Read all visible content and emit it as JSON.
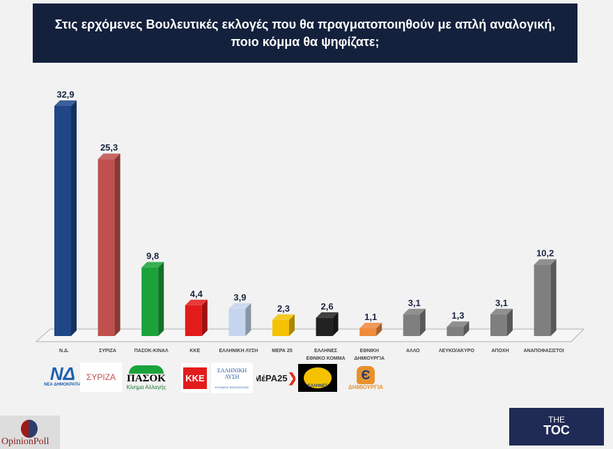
{
  "chart_data": {
    "type": "bar",
    "title": "Στις ερχόμενες Βουλευτικές εκλογές που θα πραγματοποιηθούν με απλή αναλογική, ποιο κόμμα θα ψηφίζατε;",
    "title_lines": [
      "Στις ερχόμενες Βουλευτικές εκλογές που θα πραγματοποιηθούν με απλή αναλογική,",
      "ποιο κόμμα θα ψηφίζατε;"
    ],
    "categories": [
      [
        "Ν.Δ."
      ],
      [
        "ΣΥΡΙΖΑ"
      ],
      [
        "ΠΑΣΟΚ-ΚΙΝΑΛ"
      ],
      [
        "ΚΚΕ"
      ],
      [
        "ΕΛΛΗΝΙΚΗ ΛΥΣΗ"
      ],
      [
        "ΜΕΡΑ 25"
      ],
      [
        "ΕΛΛΗΝΕΣ",
        "ΕΘΝΙΚΟ ΚΟΜΜΑ"
      ],
      [
        "ΕΘΝΙΚΗ",
        "ΔΗΜΙΟΥΡΓΙΑ"
      ],
      [
        "ΑΛΛΟ"
      ],
      [
        "ΛΕΥΚΟ/ΑΚΥΡΟ"
      ],
      [
        "ΑΠΟΧΗ"
      ],
      [
        "ΑΝΑΠΟΦΑΣΙΣΤΟΙ"
      ]
    ],
    "values": [
      32.9,
      25.3,
      9.8,
      4.4,
      3.9,
      2.3,
      2.6,
      1.1,
      3.1,
      1.3,
      3.1,
      10.2
    ],
    "labels": [
      "32,9",
      "25,3",
      "9,8",
      "4,4",
      "3,9",
      "2,3",
      "2,6",
      "1,1",
      "3,1",
      "1,3",
      "3,1",
      "10,2"
    ],
    "colors": [
      "#1f4788",
      "#c0504d",
      "#1aa33a",
      "#e31b1b",
      "#c5d5ee",
      "#f5c200",
      "#222222",
      "#f08a3c",
      "#7f7f7f",
      "#7f7f7f",
      "#7f7f7f",
      "#7f7f7f"
    ],
    "ylim": [
      0,
      35
    ],
    "grid": false,
    "style": "3d-bar"
  },
  "logos": {
    "nd": {
      "mark": "ΝΔ",
      "text": "ΝΕΑ ΔΗΜΟΚΡΑΤΙΑ"
    },
    "syriza": {
      "mark": "ΣΥΡΙΖΑ"
    },
    "pasok": {
      "mark": "ΠΑΣΟΚ",
      "text": "Κίνημα Αλλαγής"
    },
    "kke": {
      "mark": "ΚΚΕ"
    },
    "ellisi": {
      "mark": "ΕΛΛΗΝΙΚΗ ΛΥΣΗ",
      "text": "ΚΥΡΙΑΚΟΣ ΒΕΛΟΠΟΥΛΟΣ"
    },
    "mera25": {
      "mark": "ΜέΡΑ25"
    },
    "ellines": {
      "mark": "ΕΛΛΗΝΕΣ"
    },
    "dimiourgia": {
      "mark": "Є",
      "text": "ΔΗΜΙΟΥΡΓΙΑ"
    },
    "opinionpoll": {
      "text": "OpinionPoll"
    },
    "toc": {
      "line1": "THE",
      "line2": "TOC"
    }
  }
}
